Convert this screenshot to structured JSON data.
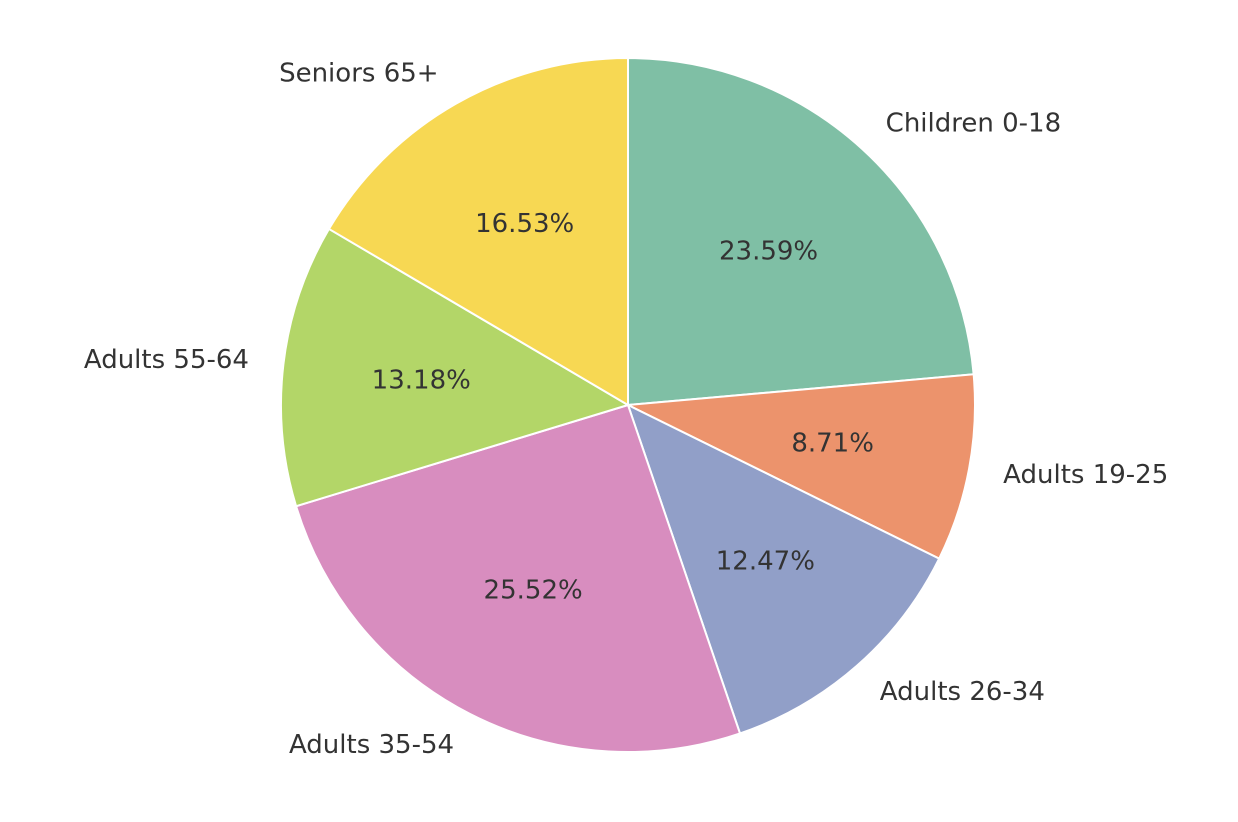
{
  "chart_data": {
    "type": "pie",
    "title": "",
    "start_angle_deg": 90,
    "direction": "clockwise",
    "slices": [
      {
        "label": "Children 0-18",
        "value": 23.59,
        "pct_label": "23.59%",
        "color": "#7fbfa5"
      },
      {
        "label": "Adults 19-25",
        "value": 8.71,
        "pct_label": "8.71%",
        "color": "#ec936c"
      },
      {
        "label": "Adults 26-34",
        "value": 12.47,
        "pct_label": "12.47%",
        "color": "#919fc8"
      },
      {
        "label": "Adults 35-54",
        "value": 25.52,
        "pct_label": "25.52%",
        "color": "#d88dbf"
      },
      {
        "label": "Adults 55-64",
        "value": 13.18,
        "pct_label": "13.18%",
        "color": "#b3d668"
      },
      {
        "label": "Seniors 65+",
        "value": 16.53,
        "pct_label": "16.53%",
        "color": "#f7d853"
      }
    ]
  }
}
